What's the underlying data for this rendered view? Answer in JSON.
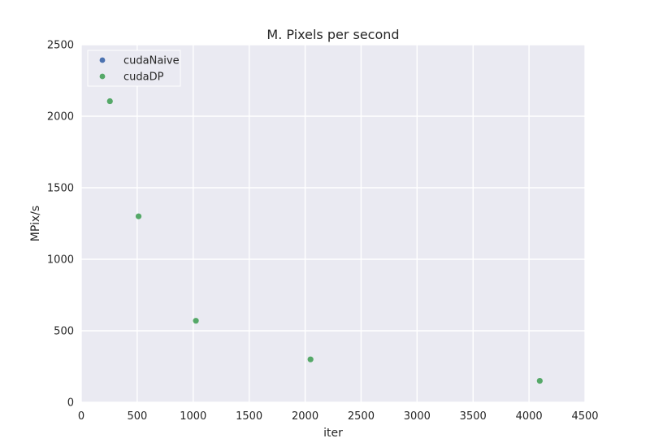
{
  "chart_data": {
    "type": "scatter",
    "title": "M. Pixels per second",
    "xlabel": "iter",
    "ylabel": "MPix/s",
    "xlim": [
      0,
      4500
    ],
    "ylim": [
      0,
      2500
    ],
    "xticks": [
      "0",
      "500",
      "1000",
      "1500",
      "2000",
      "2500",
      "3000",
      "3500",
      "4000",
      "4500"
    ],
    "yticks": [
      "0",
      "500",
      "1000",
      "1500",
      "2000",
      "2500"
    ],
    "grid": true,
    "legend_position": "top-left",
    "series": [
      {
        "name": "cudaNaive",
        "color": "#4c72b0",
        "x": [],
        "y": []
      },
      {
        "name": "cudaDP",
        "color": "#55a868",
        "x": [
          256,
          512,
          1024,
          2048,
          4096
        ],
        "y": [
          2105,
          1300,
          570,
          300,
          150
        ]
      }
    ]
  }
}
